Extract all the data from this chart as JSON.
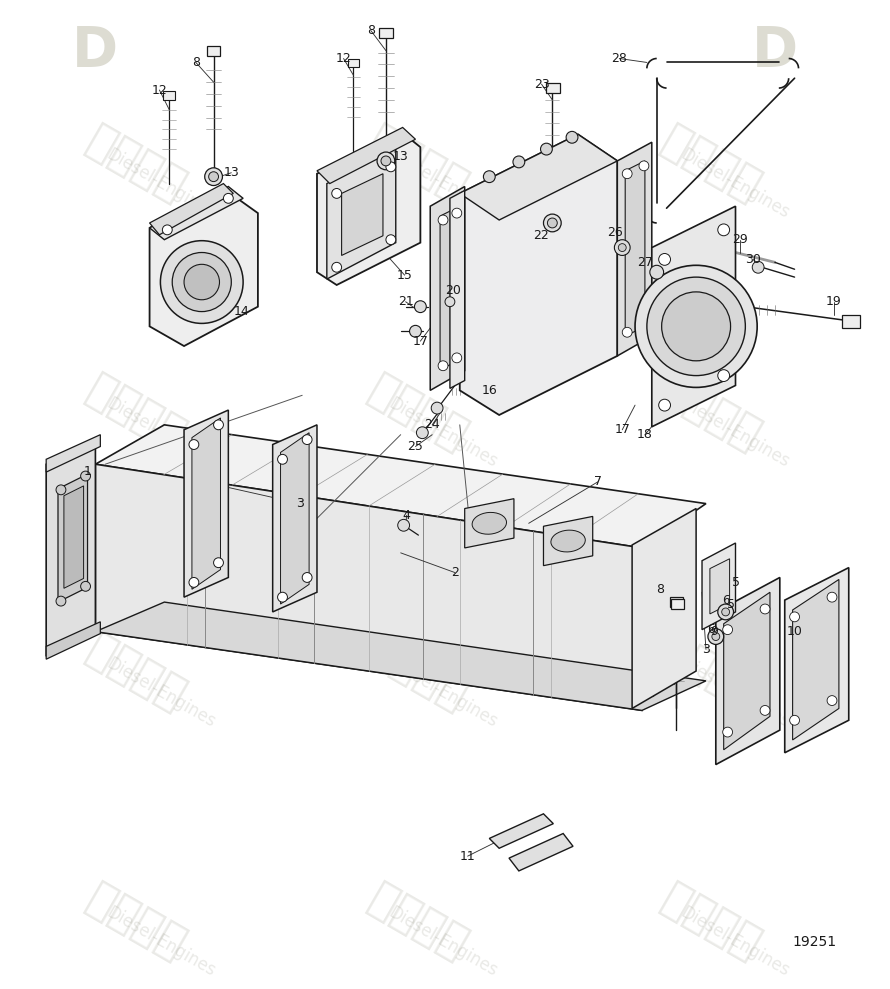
{
  "background_color": "#ffffff",
  "line_color": "#1a1a1a",
  "part_number": "19251",
  "figure_width": 8.9,
  "figure_height": 9.89,
  "dpi": 100,
  "watermark_pairs": [
    [
      "紫发动力",
      "Diesel-Engines",
      1.2,
      8.5,
      -30
    ],
    [
      "紫发动力",
      "Diesel-Engines",
      3.8,
      8.5,
      -30
    ],
    [
      "紫发动力",
      "Diesel-Engines",
      6.5,
      8.5,
      -30
    ],
    [
      "紫发动力",
      "Diesel-Engines",
      1.2,
      6.2,
      -30
    ],
    [
      "紫发动力",
      "Diesel-Engines",
      3.8,
      6.2,
      -30
    ],
    [
      "紫发动力",
      "Diesel-Engines",
      6.5,
      6.2,
      -30
    ],
    [
      "紫发动力",
      "Diesel-Engines",
      1.2,
      3.8,
      -30
    ],
    [
      "紫发动力",
      "Diesel-Engines",
      3.8,
      3.8,
      -30
    ],
    [
      "紫发动力",
      "Diesel-Engines",
      6.5,
      3.8,
      -30
    ],
    [
      "紫发动力",
      "Diesel-Engines",
      1.2,
      1.5,
      -30
    ],
    [
      "紫发动力",
      "Diesel-Engines",
      3.8,
      1.5,
      -30
    ],
    [
      "紫发动力",
      "Diesel-Engines",
      6.5,
      1.5,
      -30
    ]
  ]
}
